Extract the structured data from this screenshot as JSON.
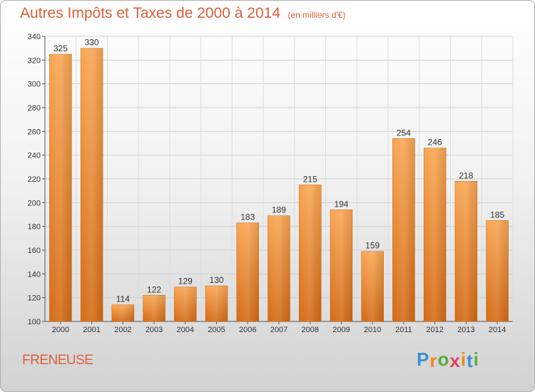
{
  "title": "Autres Impôts et Taxes de 2000 à 2014",
  "subtitle": "(en milliers d'€)",
  "commune": "FRENEUSE",
  "logo": {
    "letters": [
      "P",
      "r",
      "o",
      "x",
      "i",
      "t",
      "i"
    ],
    "colors": [
      "#3a8fd0",
      "#f08a1c",
      "#5aaa3c",
      "#e04060",
      "#f08a1c",
      "#3a8fd0",
      "#5aaa3c"
    ]
  },
  "chart_data": {
    "type": "bar",
    "categories": [
      "2000",
      "2001",
      "2002",
      "2003",
      "2004",
      "2005",
      "2006",
      "2007",
      "2008",
      "2009",
      "2010",
      "2011",
      "2012",
      "2013",
      "2014"
    ],
    "values": [
      325,
      330,
      114,
      122,
      129,
      130,
      183,
      189,
      215,
      194,
      159,
      254,
      246,
      218,
      185
    ],
    "ylim": [
      100,
      340
    ],
    "yticks": [
      100,
      120,
      140,
      160,
      180,
      200,
      220,
      240,
      260,
      280,
      300,
      320,
      340
    ],
    "grid": true,
    "bar_color": "#f08a2a"
  }
}
